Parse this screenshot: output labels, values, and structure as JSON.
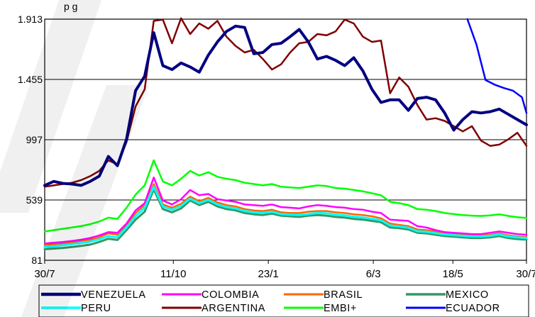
{
  "header": {
    "text": "p                      g"
  },
  "chart_data": {
    "type": "line",
    "title": "",
    "xlabel": "",
    "ylabel": "",
    "ylim": [
      81,
      1913
    ],
    "yticks": [
      "1.913",
      "1.455",
      "997",
      "539",
      "81"
    ],
    "ytick_values": [
      1913,
      1455,
      997,
      539,
      81
    ],
    "xlim": [
      0,
      53
    ],
    "xtick_labels": [
      "30/7",
      "11/10",
      "23/1",
      "6/3",
      "18/5",
      "30/7"
    ],
    "xtick_positions": [
      0,
      14.15,
      24.6,
      36.15,
      44.9,
      53
    ],
    "grid": "horizontal",
    "legend": "bottom",
    "legend_columns": 4,
    "series": [
      {
        "name": "VENEZUELA",
        "color": "#000080",
        "width": 4,
        "x": [
          0,
          1,
          2,
          3,
          4,
          5,
          6,
          7,
          8,
          9,
          10,
          11,
          12,
          13,
          14,
          15,
          16,
          17,
          18,
          19,
          20,
          21,
          22,
          23,
          24,
          25,
          26,
          27,
          28,
          29,
          30,
          31,
          32,
          33,
          34,
          35,
          36,
          37,
          38,
          39,
          40,
          41,
          42,
          43,
          44,
          45,
          46,
          47,
          48,
          49,
          50,
          51,
          52,
          53
        ],
        "values": [
          650,
          680,
          665,
          660,
          650,
          680,
          720,
          870,
          800,
          1000,
          1370,
          1480,
          1810,
          1560,
          1530,
          1580,
          1550,
          1510,
          1640,
          1740,
          1820,
          1860,
          1850,
          1650,
          1660,
          1720,
          1730,
          1780,
          1835,
          1740,
          1610,
          1630,
          1600,
          1560,
          1620,
          1520,
          1380,
          1280,
          1300,
          1300,
          1220,
          1310,
          1320,
          1300,
          1200,
          1070,
          1150,
          1210,
          1200,
          1210,
          1230,
          1190,
          1150,
          1110
        ]
      },
      {
        "name": "COLOMBIA",
        "color": "#ff00ff",
        "width": 2.5,
        "x": [
          0,
          1,
          2,
          3,
          4,
          5,
          6,
          7,
          8,
          9,
          10,
          11,
          12,
          13,
          14,
          15,
          16,
          17,
          18,
          19,
          20,
          21,
          22,
          23,
          24,
          25,
          26,
          27,
          28,
          29,
          30,
          31,
          32,
          33,
          34,
          35,
          36,
          37,
          38,
          39,
          40,
          41,
          42,
          43,
          44,
          45,
          46,
          47,
          48,
          49,
          50,
          51,
          52,
          53
        ],
        "values": [
          208,
          214,
          220,
          228,
          237,
          250,
          270,
          295,
          290,
          360,
          460,
          515,
          710,
          535,
          505,
          545,
          615,
          575,
          585,
          545,
          535,
          525,
          505,
          500,
          495,
          505,
          485,
          480,
          475,
          490,
          500,
          495,
          485,
          480,
          470,
          465,
          450,
          440,
          390,
          385,
          380,
          340,
          330,
          310,
          295,
          290,
          285,
          280,
          280,
          290,
          300,
          290,
          280,
          275
        ]
      },
      {
        "name": "BRASIL",
        "color": "#ff6600",
        "width": 2.5,
        "x": [
          0,
          1,
          2,
          3,
          4,
          5,
          6,
          7,
          8,
          9,
          10,
          11,
          12,
          13,
          14,
          15,
          16,
          17,
          18,
          19,
          20,
          21,
          22,
          23,
          24,
          25,
          26,
          27,
          28,
          29,
          30,
          31,
          32,
          33,
          34,
          35,
          36,
          37,
          38,
          39,
          40,
          41,
          42,
          43,
          44,
          45,
          46,
          47,
          48,
          49,
          50,
          51,
          52,
          53
        ],
        "values": [
          195,
          203,
          210,
          218,
          228,
          238,
          255,
          285,
          275,
          345,
          440,
          500,
          660,
          505,
          480,
          510,
          565,
          530,
          555,
          520,
          500,
          490,
          470,
          460,
          455,
          465,
          445,
          440,
          440,
          450,
          455,
          455,
          445,
          440,
          430,
          425,
          415,
          400,
          360,
          350,
          340,
          315,
          310,
          300,
          290,
          280,
          275,
          270,
          270,
          275,
          285,
          270,
          262,
          258
        ]
      },
      {
        "name": "MEXICO",
        "color": "#339966",
        "width": 3,
        "x": [
          0,
          1,
          2,
          3,
          4,
          5,
          6,
          7,
          8,
          9,
          10,
          11,
          12,
          13,
          14,
          15,
          16,
          17,
          18,
          19,
          20,
          21,
          22,
          23,
          24,
          25,
          26,
          27,
          28,
          29,
          30,
          31,
          32,
          33,
          34,
          35,
          36,
          37,
          38,
          39,
          40,
          41,
          42,
          43,
          44,
          45,
          46,
          47,
          48,
          49,
          50,
          51,
          52,
          53
        ],
        "values": [
          165,
          170,
          175,
          182,
          190,
          200,
          220,
          245,
          235,
          310,
          390,
          450,
          620,
          470,
          445,
          475,
          535,
          500,
          525,
          490,
          470,
          460,
          440,
          430,
          425,
          435,
          420,
          415,
          410,
          420,
          425,
          420,
          410,
          405,
          395,
          390,
          380,
          370,
          330,
          325,
          315,
          290,
          285,
          275,
          265,
          260,
          255,
          250,
          250,
          255,
          265,
          250,
          242,
          238
        ]
      },
      {
        "name": "PERU",
        "color": "#00ffff",
        "width": 3,
        "x": [
          0,
          1,
          2,
          3,
          4,
          5,
          6,
          7,
          8,
          9,
          10,
          11,
          12,
          13,
          14,
          15,
          16,
          17,
          18,
          19,
          20,
          21,
          22,
          23,
          24,
          25,
          26,
          27,
          28,
          29,
          30,
          31,
          32,
          33,
          34,
          35,
          36,
          37,
          38,
          39,
          40,
          41,
          42,
          43,
          44,
          45,
          46,
          47,
          48,
          49,
          50,
          51,
          52,
          53
        ],
        "values": [
          180,
          187,
          195,
          205,
          212,
          223,
          240,
          265,
          255,
          330,
          415,
          480,
          640,
          490,
          465,
          495,
          550,
          515,
          540,
          505,
          485,
          475,
          455,
          445,
          440,
          450,
          432,
          428,
          425,
          432,
          440,
          438,
          428,
          422,
          412,
          406,
          396,
          385,
          345,
          338,
          328,
          302,
          297,
          287,
          277,
          272,
          267,
          262,
          262,
          267,
          277,
          262,
          255,
          250
        ]
      },
      {
        "name": "ARGENTINA",
        "color": "#800000",
        "width": 2.5,
        "x": [
          0,
          1,
          2,
          3,
          4,
          5,
          6,
          7,
          8,
          9,
          10,
          11,
          12,
          13,
          14,
          15,
          16,
          17,
          18,
          19,
          20,
          21,
          22,
          23,
          24,
          25,
          26,
          27,
          28,
          29,
          30,
          31,
          32,
          33,
          34,
          35,
          36,
          37,
          38,
          39,
          40,
          41,
          42,
          43,
          44,
          45,
          46,
          47,
          48,
          49,
          50,
          51,
          52,
          53
        ],
        "values": [
          640,
          650,
          660,
          670,
          690,
          720,
          760,
          840,
          810,
          980,
          1250,
          1380,
          1900,
          1910,
          1730,
          1920,
          1800,
          1880,
          1840,
          1900,
          1780,
          1710,
          1660,
          1680,
          1610,
          1530,
          1570,
          1660,
          1730,
          1740,
          1800,
          1790,
          1820,
          1910,
          1880,
          1780,
          1740,
          1750,
          1350,
          1470,
          1400,
          1260,
          1150,
          1160,
          1140,
          1100,
          1060,
          1100,
          990,
          950,
          960,
          1000,
          1050,
          950
        ]
      },
      {
        "name": "EMBI+",
        "color": "#00ff00",
        "width": 2.5,
        "x": [
          0,
          1,
          2,
          3,
          4,
          5,
          6,
          7,
          8,
          9,
          10,
          11,
          12,
          13,
          14,
          15,
          16,
          17,
          18,
          19,
          20,
          21,
          22,
          23,
          24,
          25,
          26,
          27,
          28,
          29,
          30,
          31,
          32,
          33,
          34,
          35,
          36,
          37,
          38,
          39,
          40,
          41,
          42,
          43,
          44,
          45,
          46,
          47,
          48,
          49,
          50,
          51,
          52,
          53
        ],
        "values": [
          300,
          310,
          320,
          330,
          340,
          355,
          375,
          405,
          395,
          480,
          580,
          650,
          840,
          680,
          650,
          700,
          760,
          725,
          750,
          715,
          700,
          690,
          670,
          660,
          650,
          660,
          640,
          635,
          630,
          640,
          650,
          645,
          630,
          625,
          615,
          605,
          590,
          575,
          525,
          515,
          500,
          470,
          465,
          455,
          440,
          432,
          425,
          420,
          418,
          422,
          430,
          418,
          408,
          402
        ]
      },
      {
        "name": "ECUADOR",
        "color": "#0000ff",
        "width": 2.5,
        "x": [
          46.5,
          47.5,
          48.5,
          49.5,
          50.5,
          51.5,
          52.5,
          53
        ],
        "values": [
          1913,
          1720,
          1450,
          1415,
          1390,
          1370,
          1320,
          1200
        ]
      }
    ]
  }
}
